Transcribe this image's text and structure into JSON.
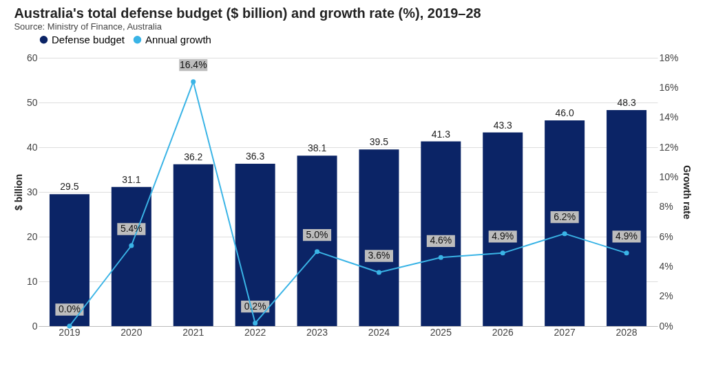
{
  "chart_data": {
    "type": "bar",
    "title": "Australia's total defense budget ($ billion) and growth rate (%), 2019–28",
    "categories": [
      "2019",
      "2020",
      "2021",
      "2022",
      "2023",
      "2024",
      "2025",
      "2026",
      "2027",
      "2028"
    ],
    "series": [
      {
        "name": "Defense budget",
        "color": "#0b2466",
        "values": [
          29.5,
          31.1,
          36.2,
          36.3,
          38.1,
          39.5,
          41.3,
          43.3,
          46.0,
          48.3
        ],
        "value_labels": [
          "29.5",
          "31.1",
          "36.2",
          "36.3",
          "38.1",
          "39.5",
          "41.3",
          "43.3",
          "46.0",
          "48.3"
        ]
      },
      {
        "name": "Annual growth",
        "type": "line",
        "axis": "y2",
        "color": "#3ab4e6",
        "values": [
          0.0,
          5.4,
          16.4,
          0.2,
          5.0,
          3.6,
          4.6,
          4.9,
          6.2,
          4.9
        ],
        "value_labels": [
          "0.0%",
          "5.4%",
          "16.4%",
          "0.2%",
          "5.0%",
          "3.6%",
          "4.6%",
          "4.9%",
          "6.2%",
          "4.9%"
        ]
      }
    ],
    "ylabel": "$ billion",
    "y2label": "Growth rate",
    "ylim": [
      0,
      60
    ],
    "yticks": [
      0,
      10,
      20,
      30,
      40,
      50,
      60
    ],
    "y2lim": [
      0,
      18
    ],
    "y2ticks": [
      {
        "value": 0,
        "label": "0%"
      },
      {
        "value": 2,
        "label": "2%"
      },
      {
        "value": 4,
        "label": "4%"
      },
      {
        "value": 6,
        "label": "6%"
      },
      {
        "value": 8,
        "label": "8%"
      },
      {
        "value": 10,
        "label": "10%"
      },
      {
        "value": 12,
        "label": "12%"
      },
      {
        "value": 14,
        "label": "14%"
      },
      {
        "value": 16,
        "label": "16%"
      },
      {
        "value": 18,
        "label": "18%"
      }
    ],
    "grid": "y",
    "legend": "top left",
    "marker": "circle",
    "line_style": "solid",
    "data_labels": true,
    "annotations": [
      "Source: Ministry of Finance, Australia"
    ]
  }
}
